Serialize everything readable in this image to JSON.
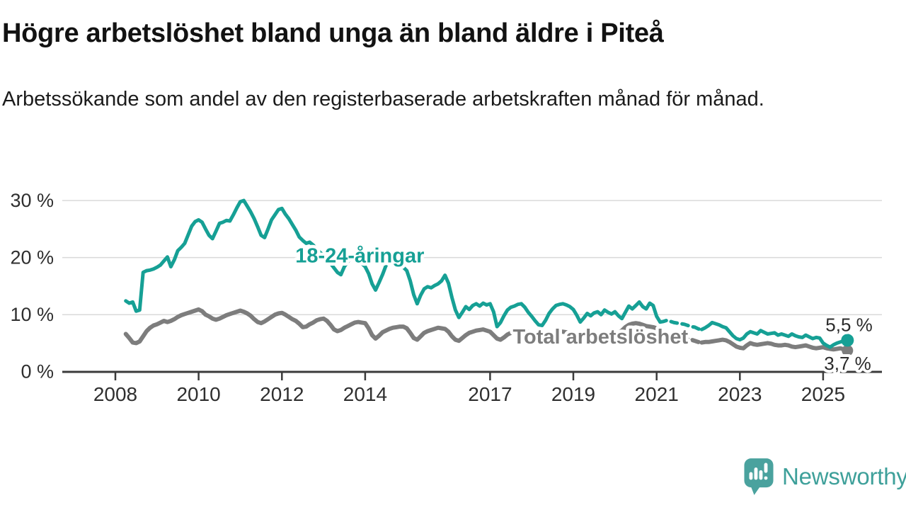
{
  "header": {
    "title": "Högre arbetslöshet bland unga än bland äldre i Piteå",
    "subtitle": "Arbetssökande som andel av den registerbaserade arbetskraften månad för månad."
  },
  "footer": {
    "brand": "Newsworthy"
  },
  "colors": {
    "youth": "#16a095",
    "total": "#7d7d7d",
    "axis": "#3b3b3b",
    "grid": "#d9d9d9",
    "tick_label": "#2f2f2f",
    "value_label": "#2b2b2b",
    "halo": "#ffffff",
    "logo": "#4aa29e",
    "logo_text": "#3ea09a"
  },
  "chart_data": {
    "type": "line",
    "title": "Högre arbetslöshet bland unga än bland äldre i Piteå",
    "subtitle": "Arbetssökande som andel av den registerbaserade arbetskraften månad för månad.",
    "x_axis": {
      "ticks": [
        2008,
        2010,
        2012,
        2014,
        2017,
        2019,
        2021,
        2023,
        2025
      ],
      "min": 2008,
      "max": 2025.58,
      "grid": false
    },
    "y_axis": {
      "ticks": [
        {
          "value": 0,
          "label": "0 %"
        },
        {
          "value": 10,
          "label": "10 %"
        },
        {
          "value": 20,
          "label": "20 %"
        },
        {
          "value": 30,
          "label": "30 %"
        }
      ],
      "range": [
        0,
        32
      ],
      "grid": true
    },
    "legend_position": "inline-labels",
    "data_break": {
      "note": "dashed segment",
      "from_index": 154,
      "to_index": 166
    },
    "series": [
      {
        "id": "total",
        "name": "Total arbetslöshet",
        "color": "#7d7d7d",
        "start_year": 2008.25,
        "frequency": "monthly",
        "end_label": "3,7 %",
        "end_dot": true,
        "label": {
          "text": "Total arbetslöshet",
          "year": 2019.65,
          "value": 6.2
        },
        "values": [
          6.6,
          5.9,
          5.1,
          5.0,
          5.3,
          6.2,
          7.1,
          7.7,
          8.1,
          8.3,
          8.6,
          8.9,
          8.7,
          8.9,
          9.2,
          9.6,
          9.9,
          10.1,
          10.3,
          10.5,
          10.7,
          10.9,
          10.6,
          10.0,
          9.7,
          9.3,
          9.1,
          9.3,
          9.6,
          9.9,
          10.1,
          10.3,
          10.5,
          10.7,
          10.5,
          10.2,
          9.8,
          9.2,
          8.7,
          8.5,
          8.8,
          9.2,
          9.6,
          10.0,
          10.2,
          10.3,
          10.0,
          9.6,
          9.2,
          8.9,
          8.4,
          7.8,
          7.9,
          8.3,
          8.6,
          9.0,
          9.2,
          9.3,
          8.9,
          8.2,
          7.4,
          7.1,
          7.3,
          7.7,
          8.0,
          8.3,
          8.6,
          8.7,
          8.6,
          8.5,
          7.6,
          6.4,
          5.8,
          6.3,
          6.9,
          7.2,
          7.5,
          7.7,
          7.8,
          7.9,
          7.9,
          7.6,
          6.8,
          5.9,
          5.6,
          6.2,
          6.8,
          7.1,
          7.3,
          7.5,
          7.7,
          7.6,
          7.5,
          7.0,
          6.2,
          5.6,
          5.4,
          5.9,
          6.4,
          6.8,
          7.0,
          7.2,
          7.3,
          7.4,
          7.2,
          7.0,
          6.4,
          5.8,
          5.6,
          6.0,
          6.5,
          6.8,
          7.0,
          7.1,
          7.2,
          7.1,
          7.0,
          6.9,
          6.3,
          5.8,
          5.7,
          6.1,
          6.5,
          6.7,
          6.9,
          7.0,
          7.0,
          6.9,
          6.8,
          6.6,
          6.1,
          5.7,
          5.8,
          6.1,
          6.3,
          6.5,
          6.6,
          6.6,
          6.7,
          6.6,
          6.6,
          6.7,
          6.8,
          7.2,
          7.8,
          8.2,
          8.4,
          8.5,
          8.4,
          8.2,
          8.0,
          7.9,
          7.8,
          7.6,
          7.2,
          6.8,
          6.6,
          6.5,
          6.4,
          6.2,
          6.0,
          5.8,
          5.7,
          5.6,
          5.4,
          5.2,
          5.1,
          5.2,
          5.2,
          5.3,
          5.4,
          5.5,
          5.6,
          5.5,
          5.2,
          4.8,
          4.4,
          4.2,
          4.1,
          4.6,
          5.0,
          4.8,
          4.7,
          4.8,
          4.9,
          5.0,
          4.9,
          4.7,
          4.6,
          4.6,
          4.7,
          4.6,
          4.4,
          4.3,
          4.4,
          4.5,
          4.6,
          4.4,
          4.2,
          4.1,
          4.2,
          4.3,
          4.1,
          4.0,
          3.9,
          4.0,
          4.1,
          3.9,
          3.7
        ]
      },
      {
        "id": "youth",
        "name": "18-24-åringar",
        "color": "#16a095",
        "start_year": 2008.25,
        "frequency": "monthly",
        "end_label": "5,5 %",
        "end_dot": true,
        "label": {
          "text": "18-24-åringar",
          "year": 2013.87,
          "value": 20.4
        },
        "values": [
          12.4,
          12.0,
          12.2,
          10.6,
          10.8,
          17.4,
          17.7,
          17.8,
          18.0,
          18.3,
          18.7,
          19.4,
          20.1,
          18.4,
          19.6,
          21.2,
          21.8,
          22.5,
          24.0,
          25.5,
          26.3,
          26.6,
          26.2,
          25.0,
          23.9,
          23.3,
          24.6,
          26.0,
          26.2,
          26.5,
          26.4,
          27.5,
          28.7,
          29.8,
          30.0,
          29.0,
          28.0,
          26.8,
          25.4,
          23.9,
          23.5,
          25.0,
          26.6,
          27.5,
          28.4,
          28.6,
          27.6,
          26.8,
          25.8,
          24.8,
          23.6,
          23.0,
          22.5,
          22.7,
          22.2,
          21.5,
          20.9,
          20.4,
          19.8,
          19.0,
          18.2,
          17.4,
          17.0,
          18.4,
          19.3,
          19.9,
          20.2,
          19.8,
          19.0,
          18.4,
          17.2,
          15.4,
          14.3,
          15.6,
          17.0,
          18.6,
          19.6,
          19.9,
          19.4,
          18.8,
          18.3,
          17.7,
          15.9,
          13.5,
          11.9,
          13.4,
          14.5,
          14.9,
          14.7,
          15.1,
          15.4,
          15.9,
          16.9,
          15.5,
          13.0,
          10.8,
          9.5,
          10.4,
          11.4,
          10.9,
          11.6,
          11.9,
          11.5,
          12.0,
          11.7,
          11.9,
          10.5,
          7.9,
          8.6,
          9.8,
          10.8,
          11.3,
          11.5,
          11.8,
          11.9,
          11.3,
          10.4,
          9.7,
          8.9,
          8.2,
          8.1,
          9.0,
          10.2,
          11.0,
          11.6,
          11.8,
          11.9,
          11.7,
          11.4,
          10.9,
          9.9,
          8.7,
          9.4,
          10.2,
          9.8,
          10.3,
          10.5,
          10.0,
          10.8,
          10.4,
          10.1,
          10.5,
          9.8,
          9.3,
          10.4,
          11.5,
          11.0,
          11.6,
          12.2,
          11.4,
          11.0,
          12.0,
          11.6,
          9.7,
          8.7,
          8.8,
          9.0,
          8.8,
          8.6,
          8.5,
          8.4,
          8.3,
          8.1,
          7.9,
          7.8,
          7.5,
          7.4,
          7.7,
          8.1,
          8.6,
          8.4,
          8.2,
          7.9,
          7.7,
          7.0,
          6.3,
          5.8,
          5.6,
          5.9,
          6.6,
          7.0,
          6.8,
          6.6,
          7.2,
          6.9,
          6.6,
          6.7,
          6.8,
          6.4,
          6.6,
          6.4,
          6.2,
          6.6,
          6.3,
          6.1,
          6.0,
          6.4,
          6.1,
          5.8,
          6.0,
          5.9,
          5.0,
          4.6,
          4.3,
          4.7,
          5.0,
          5.2,
          5.4,
          5.5
        ]
      }
    ]
  }
}
